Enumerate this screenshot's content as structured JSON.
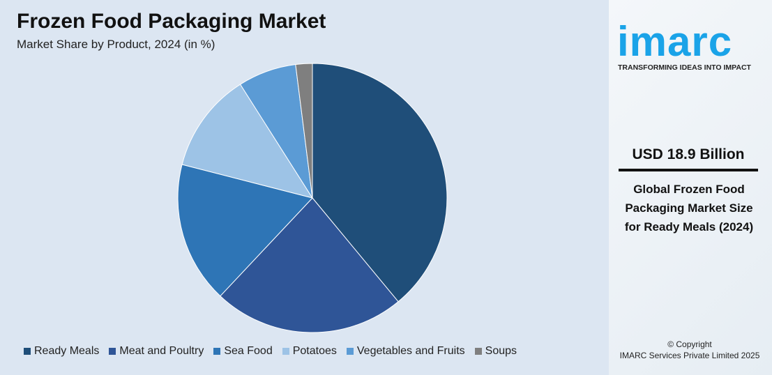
{
  "chart_data": {
    "type": "pie",
    "title": "Frozen Food Packaging Market",
    "subtitle": "Market Share by Product, 2024 (in %)",
    "categories": [
      "Ready Meals",
      "Meat and Poultry",
      "Sea Food",
      "Potatoes",
      "Vegetables and Fruits",
      "Soups"
    ],
    "values": [
      39,
      23,
      17,
      12,
      7,
      2
    ],
    "colors": [
      "#1f4e79",
      "#2f5597",
      "#2e75b6",
      "#9dc3e6",
      "#5b9bd5",
      "#7f7f7f"
    ],
    "legend_position": "bottom"
  },
  "brand": {
    "logo": "imarc",
    "tagline": "TRANSFORMING IDEAS INTO IMPACT",
    "logo_color": "#1aa3e8"
  },
  "highlight": {
    "value": "USD 18.9 Billion",
    "description": "Global Frozen Food Packaging Market Size for Ready Meals (2024)"
  },
  "copyright": {
    "line1": "© Copyright",
    "line2": "IMARC Services Private Limited 2025"
  }
}
